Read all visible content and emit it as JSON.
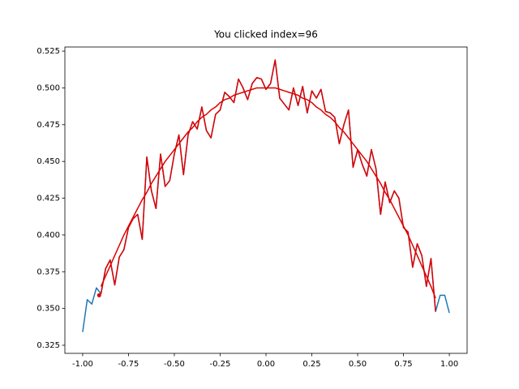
{
  "chart_data": {
    "type": "line",
    "title": "You clicked index=96",
    "x": [
      -1,
      -0.975,
      -0.95,
      -0.925,
      -0.9,
      -0.875,
      -0.85,
      -0.825,
      -0.8,
      -0.775,
      -0.75,
      -0.725,
      -0.7,
      -0.675,
      -0.65,
      -0.625,
      -0.6,
      -0.575,
      -0.55,
      -0.525,
      -0.5,
      -0.475,
      -0.45,
      -0.425,
      -0.4,
      -0.375,
      -0.35,
      -0.325,
      -0.3,
      -0.275,
      -0.25,
      -0.225,
      -0.2,
      -0.175,
      -0.15,
      -0.125,
      -0.1,
      -0.075,
      -0.05,
      -0.025,
      0,
      0.025,
      0.05,
      0.075,
      0.1,
      0.125,
      0.15,
      0.175,
      0.2,
      0.225,
      0.25,
      0.275,
      0.3,
      0.325,
      0.35,
      0.375,
      0.4,
      0.425,
      0.45,
      0.475,
      0.5,
      0.525,
      0.55,
      0.575,
      0.6,
      0.625,
      0.65,
      0.675,
      0.7,
      0.725,
      0.75,
      0.775,
      0.8,
      0.825,
      0.85,
      0.875,
      0.9,
      0.925,
      0.95,
      0.975,
      1
    ],
    "series": [
      {
        "color": "#1f77b4",
        "values": [
          0.334,
          0.356,
          0.353,
          0.364,
          0.36,
          0.377,
          0.383,
          0.366,
          0.385,
          0.39,
          0.405,
          0.411,
          0.414,
          0.397,
          0.453,
          0.43,
          0.418,
          0.455,
          0.433,
          0.437,
          0.455,
          0.468,
          0.441,
          0.468,
          0.477,
          0.472,
          0.487,
          0.471,
          0.466,
          0.482,
          0.485,
          0.497,
          0.494,
          0.49,
          0.506,
          0.5,
          0.492,
          0.503,
          0.507,
          0.506,
          0.499,
          0.503,
          0.519,
          0.493,
          0.489,
          0.485,
          0.5,
          0.488,
          0.501,
          0.483,
          0.498,
          0.493,
          0.499,
          0.484,
          0.483,
          0.48,
          0.462,
          0.475,
          0.485,
          0.446,
          0.458,
          0.448,
          0.44,
          0.458,
          0.445,
          0.414,
          0.436,
          0.422,
          0.43,
          0.425,
          0.405,
          0.402,
          0.378,
          0.394,
          0.386,
          0.365,
          0.384,
          0.348,
          0.359,
          0.359,
          0.347
        ]
      },
      {
        "color": "#dd0000",
        "values": [
          null,
          null,
          null,
          null,
          0.36,
          0.377,
          0.383,
          0.366,
          0.385,
          0.39,
          0.405,
          0.411,
          0.414,
          0.397,
          0.453,
          0.43,
          0.418,
          0.455,
          0.433,
          0.437,
          0.455,
          0.468,
          0.441,
          0.468,
          0.477,
          0.472,
          0.487,
          0.471,
          0.466,
          0.482,
          0.485,
          0.497,
          0.494,
          0.49,
          0.506,
          0.5,
          0.492,
          0.503,
          0.507,
          0.506,
          0.499,
          0.503,
          0.519,
          0.493,
          0.489,
          0.485,
          0.5,
          0.488,
          0.501,
          0.483,
          0.498,
          0.493,
          0.499,
          0.484,
          0.483,
          0.48,
          0.462,
          0.475,
          0.485,
          0.446,
          0.458,
          0.448,
          0.44,
          0.458,
          0.445,
          0.414,
          0.436,
          0.422,
          0.43,
          0.425,
          0.405,
          0.402,
          0.378,
          0.394,
          0.386,
          0.365,
          0.384,
          0.348,
          null,
          null,
          null
        ]
      },
      {
        "color": "#dd0000",
        "values": [
          null,
          null,
          null,
          null,
          0.365,
          0.372,
          0.379,
          0.386,
          0.393,
          0.4,
          0.406,
          0.412,
          0.418,
          0.424,
          0.429,
          0.435,
          0.44,
          0.445,
          0.45,
          0.454,
          0.458,
          0.462,
          0.466,
          0.47,
          0.473,
          0.477,
          0.48,
          0.482,
          0.485,
          0.487,
          0.49,
          0.492,
          0.493,
          0.495,
          0.496,
          0.497,
          0.498,
          0.499,
          0.5,
          0.5,
          0.5,
          0.5,
          0.5,
          0.499,
          0.498,
          0.497,
          0.496,
          0.495,
          0.493,
          0.492,
          0.49,
          0.487,
          0.485,
          0.482,
          0.48,
          0.477,
          0.473,
          0.47,
          0.466,
          0.462,
          0.458,
          0.454,
          0.45,
          0.445,
          0.44,
          0.435,
          0.429,
          0.424,
          0.418,
          0.412,
          0.406,
          0.4,
          0.393,
          0.386,
          0.379,
          0.372,
          0.365,
          0.357,
          null,
          null,
          null
        ]
      }
    ],
    "points": {
      "color": "#dd0000",
      "x": [
        -0.91
      ],
      "values": [
        0.359
      ]
    },
    "xlim": [
      -1.097,
      1.097
    ],
    "ylim": [
      0.3195,
      0.5278
    ],
    "xticks": [
      {
        "value": -1,
        "label": "-1.00"
      },
      -0.75,
      {
        "value": -0.5,
        "label": "-0.50"
      },
      -0.25,
      {
        "value": 0,
        "label": "0.00"
      },
      0.25,
      {
        "value": 0.5,
        "label": "0.50"
      },
      0.75,
      {
        "value": 1,
        "label": "1.00"
      }
    ],
    "yticks": [
      0.325,
      {
        "value": 0.35,
        "label": "0.350"
      },
      0.375,
      {
        "value": 0.4,
        "label": "0.400"
      },
      0.425,
      {
        "value": 0.45,
        "label": "0.450"
      },
      0.475,
      {
        "value": 0.5,
        "label": "0.500"
      },
      0.525
    ]
  }
}
